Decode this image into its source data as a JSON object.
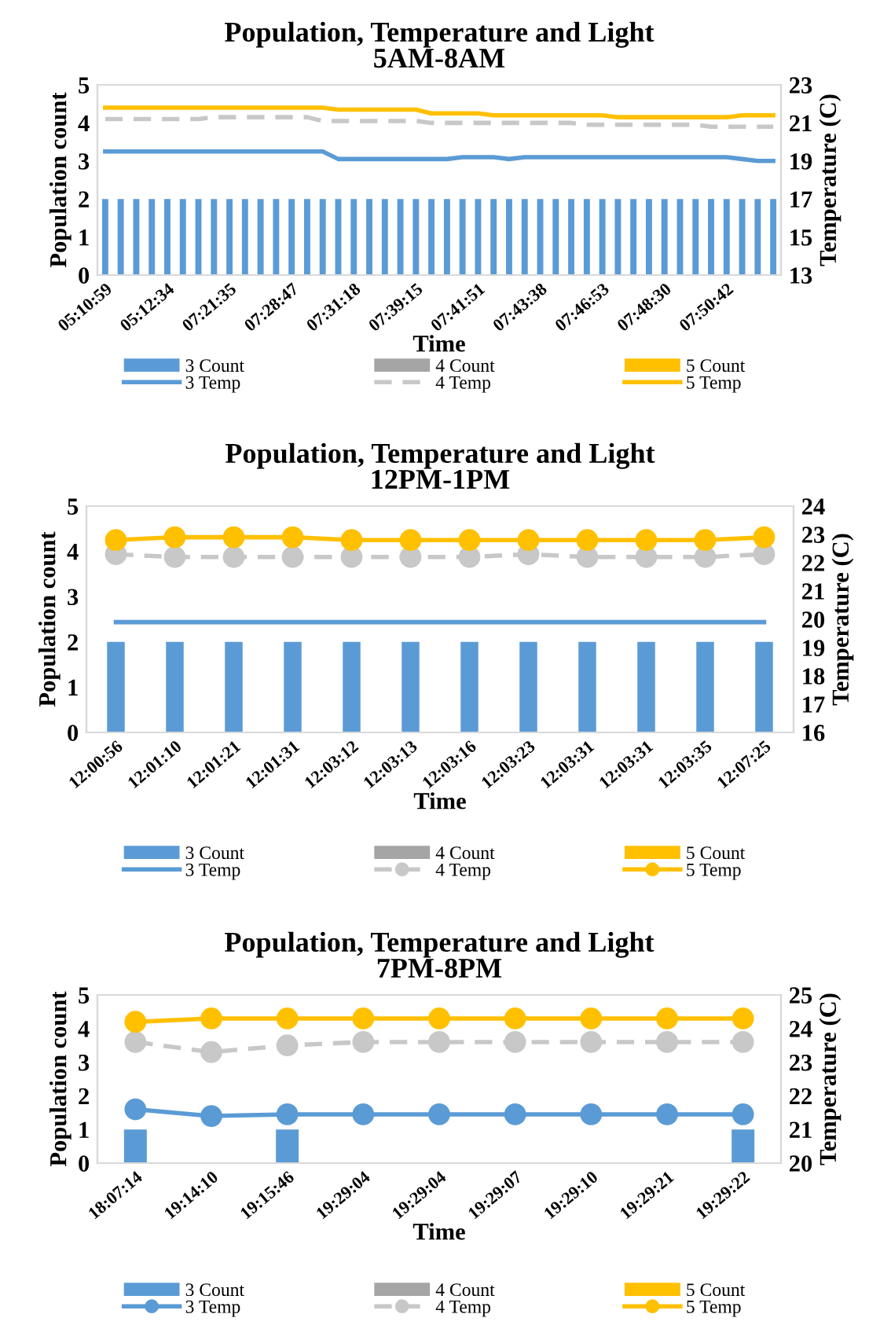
{
  "chart_data": [
    {
      "type": "bar",
      "title": "Population, Temperature and Light\n5AM-8AM",
      "xlabel": "Time",
      "ylabel": "Population count",
      "y2label": "Temperature (C)",
      "categories": [
        "05:10:59",
        null,
        null,
        null,
        "05:12:34",
        null,
        null,
        null,
        "07:21:35",
        null,
        null,
        null,
        "07:28:47",
        null,
        null,
        null,
        "07:31:18",
        null,
        null,
        null,
        "07:39:15",
        null,
        null,
        null,
        "07:41:51",
        null,
        null,
        null,
        "07:43:38",
        null,
        null,
        null,
        "07:46:53",
        null,
        null,
        null,
        "07:48:30",
        null,
        null,
        null,
        "07:50:42",
        null,
        null,
        null
      ],
      "ylim": [
        0,
        5
      ],
      "yticks": [
        0,
        1,
        2,
        3,
        4,
        5
      ],
      "y2lim": [
        13,
        23
      ],
      "y2ticks": [
        13,
        15,
        17,
        19,
        21,
        23
      ],
      "grid": false,
      "legend": "bottom",
      "series": [
        {
          "name": "3 Count",
          "type": "bar",
          "color": "#5b9bd5",
          "values": [
            2,
            2,
            2,
            2,
            2,
            2,
            2,
            2,
            2,
            2,
            2,
            2,
            2,
            2,
            2,
            2,
            2,
            2,
            2,
            2,
            2,
            2,
            2,
            2,
            2,
            2,
            2,
            2,
            2,
            2,
            2,
            2,
            2,
            2,
            2,
            2,
            2,
            2,
            2,
            2,
            2,
            2,
            2,
            2
          ]
        },
        {
          "name": "3 Temp",
          "type": "line",
          "axis": "y2",
          "color": "#5b9bd5",
          "line_style": "solid",
          "marker": "none",
          "values": [
            19.5,
            19.5,
            19.5,
            19.5,
            19.5,
            19.5,
            19.5,
            19.5,
            19.5,
            19.5,
            19.5,
            19.5,
            19.5,
            19.5,
            19.5,
            19.1,
            19.1,
            19.1,
            19.1,
            19.1,
            19.1,
            19.1,
            19.1,
            19.2,
            19.2,
            19.2,
            19.1,
            19.2,
            19.2,
            19.2,
            19.2,
            19.2,
            19.2,
            19.2,
            19.2,
            19.2,
            19.2,
            19.2,
            19.2,
            19.2,
            19.2,
            19.1,
            19.0,
            19.0
          ]
        },
        {
          "name": "4 Count",
          "type": "bar",
          "color": "#a5a5a5",
          "values": [
            null,
            null,
            null,
            null,
            null,
            null,
            null,
            null,
            null,
            null,
            null,
            null,
            null,
            null,
            null,
            null,
            null,
            null,
            null,
            null,
            null,
            null,
            null,
            null,
            null,
            null,
            null,
            null,
            null,
            null,
            null,
            null,
            null,
            null,
            null,
            null,
            null,
            null,
            null,
            null,
            null,
            null,
            null,
            null
          ]
        },
        {
          "name": "4 Temp",
          "type": "line",
          "axis": "y2",
          "color": "#c8c8c8",
          "line_style": "dashed",
          "marker": "none",
          "values": [
            21.2,
            21.2,
            21.2,
            21.2,
            21.2,
            21.2,
            21.2,
            21.3,
            21.3,
            21.3,
            21.3,
            21.3,
            21.3,
            21.3,
            21.1,
            21.1,
            21.1,
            21.1,
            21.1,
            21.1,
            21.1,
            21.0,
            21.0,
            21.0,
            21.0,
            21.0,
            21.0,
            21.0,
            21.0,
            21.0,
            21.0,
            20.9,
            20.9,
            20.9,
            20.9,
            20.9,
            20.9,
            20.9,
            20.9,
            20.8,
            20.8,
            20.8,
            20.8,
            20.8
          ]
        },
        {
          "name": "5 Count",
          "type": "bar",
          "color": "#ffc000",
          "values": [
            null,
            null,
            null,
            null,
            null,
            null,
            null,
            null,
            null,
            null,
            null,
            null,
            null,
            null,
            null,
            null,
            null,
            null,
            null,
            null,
            null,
            null,
            null,
            null,
            null,
            null,
            null,
            null,
            null,
            null,
            null,
            null,
            null,
            null,
            null,
            null,
            null,
            null,
            null,
            null,
            null,
            null,
            null,
            null
          ]
        },
        {
          "name": "5 Temp",
          "type": "line",
          "axis": "y2",
          "color": "#ffc000",
          "line_style": "solid",
          "marker": "none",
          "values": [
            21.8,
            21.8,
            21.8,
            21.8,
            21.8,
            21.8,
            21.8,
            21.8,
            21.8,
            21.8,
            21.8,
            21.8,
            21.8,
            21.8,
            21.8,
            21.7,
            21.7,
            21.7,
            21.7,
            21.7,
            21.7,
            21.5,
            21.5,
            21.5,
            21.5,
            21.4,
            21.4,
            21.4,
            21.4,
            21.4,
            21.4,
            21.4,
            21.4,
            21.3,
            21.3,
            21.3,
            21.3,
            21.3,
            21.3,
            21.3,
            21.3,
            21.4,
            21.4,
            21.4
          ]
        }
      ]
    },
    {
      "type": "bar",
      "title": "Population, Temperature and Light\n12PM-1PM",
      "xlabel": "Time",
      "ylabel": "Population count",
      "y2label": "Temperature (C)",
      "categories": [
        "12:00:56",
        "12:01:10",
        "12:01:21",
        "12:01:31",
        "12:03:12",
        "12:03:13",
        "12:03:16",
        "12:03:23",
        "12:03:31",
        "12:03:31",
        "12:03:35",
        "12:07:25"
      ],
      "ylim": [
        0,
        5
      ],
      "yticks": [
        0,
        1,
        2,
        3,
        4,
        5
      ],
      "y2lim": [
        16,
        24
      ],
      "y2ticks": [
        16,
        17,
        18,
        19,
        20,
        21,
        22,
        23,
        24
      ],
      "grid": false,
      "legend": "bottom",
      "series": [
        {
          "name": "3 Count",
          "type": "bar",
          "color": "#5b9bd5",
          "values": [
            2,
            2,
            2,
            2,
            2,
            2,
            2,
            2,
            2,
            2,
            2,
            2
          ]
        },
        {
          "name": "3 Temp",
          "type": "line",
          "axis": "y2",
          "color": "#5b9bd5",
          "line_style": "solid",
          "marker": "none",
          "values": [
            19.9,
            19.9,
            19.9,
            19.9,
            19.9,
            19.9,
            19.9,
            19.9,
            19.9,
            19.9,
            19.9,
            19.9
          ]
        },
        {
          "name": "4 Count",
          "type": "bar",
          "color": "#a5a5a5",
          "values": [
            null,
            null,
            null,
            null,
            null,
            null,
            null,
            null,
            null,
            null,
            null,
            null
          ]
        },
        {
          "name": "4 Temp",
          "type": "line",
          "axis": "y2",
          "color": "#c8c8c8",
          "line_style": "dashed",
          "marker": "circle",
          "values": [
            22.3,
            22.2,
            22.2,
            22.2,
            22.2,
            22.2,
            22.2,
            22.3,
            22.2,
            22.2,
            22.2,
            22.3
          ]
        },
        {
          "name": "5 Count",
          "type": "bar",
          "color": "#ffc000",
          "values": [
            null,
            null,
            null,
            null,
            null,
            null,
            null,
            null,
            null,
            null,
            null,
            null
          ]
        },
        {
          "name": "5 Temp",
          "type": "line",
          "axis": "y2",
          "color": "#ffc000",
          "line_style": "solid",
          "marker": "circle",
          "values": [
            22.8,
            22.9,
            22.9,
            22.9,
            22.8,
            22.8,
            22.8,
            22.8,
            22.8,
            22.8,
            22.8,
            22.9
          ]
        }
      ]
    },
    {
      "type": "bar",
      "title": "Population, Temperature and Light\n7PM-8PM",
      "xlabel": "Time",
      "ylabel": "Population count",
      "y2label": "Temperature (C)",
      "categories": [
        "18:07:14",
        "19:14:10",
        "19:15:46",
        "19:29:04",
        "19:29:04",
        "19:29:07",
        "19:29:10",
        "19:29:21",
        "19:29:22"
      ],
      "ylim": [
        0,
        5
      ],
      "yticks": [
        0,
        1,
        2,
        3,
        4,
        5
      ],
      "y2lim": [
        20,
        25
      ],
      "y2ticks": [
        20,
        21,
        22,
        23,
        24,
        25
      ],
      "grid": false,
      "legend": "bottom",
      "series": [
        {
          "name": "3 Count",
          "type": "bar",
          "color": "#5b9bd5",
          "values": [
            1,
            0,
            1,
            0,
            0,
            0,
            0,
            0,
            1
          ]
        },
        {
          "name": "3 Temp",
          "type": "line",
          "axis": "y2",
          "color": "#5b9bd5",
          "line_style": "solid",
          "marker": "circle",
          "values": [
            21.6,
            21.4,
            21.45,
            21.45,
            21.45,
            21.45,
            21.45,
            21.45,
            21.45
          ]
        },
        {
          "name": "4 Count",
          "type": "bar",
          "color": "#a5a5a5",
          "values": [
            null,
            null,
            null,
            null,
            null,
            null,
            null,
            null,
            null
          ]
        },
        {
          "name": "4 Temp",
          "type": "line",
          "axis": "y2",
          "color": "#c8c8c8",
          "line_style": "dashed",
          "marker": "circle",
          "values": [
            23.6,
            23.3,
            23.5,
            23.6,
            23.6,
            23.6,
            23.6,
            23.6,
            23.6
          ]
        },
        {
          "name": "5 Count",
          "type": "bar",
          "color": "#ffc000",
          "values": [
            null,
            null,
            null,
            null,
            null,
            null,
            null,
            null,
            null
          ]
        },
        {
          "name": "5 Temp",
          "type": "line",
          "axis": "y2",
          "color": "#ffc000",
          "line_style": "solid",
          "marker": "circle",
          "values": [
            24.2,
            24.3,
            24.3,
            24.3,
            24.3,
            24.3,
            24.3,
            24.3,
            24.3
          ]
        }
      ]
    }
  ]
}
